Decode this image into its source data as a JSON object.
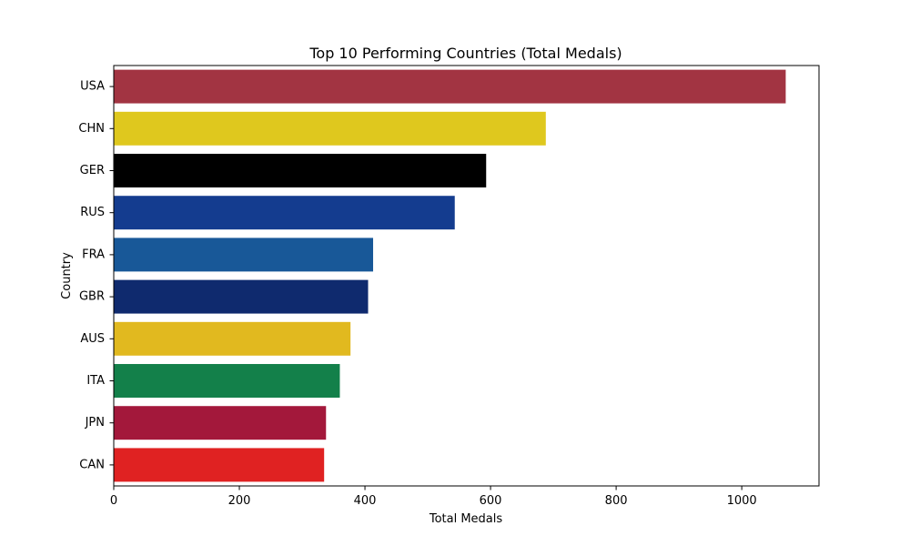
{
  "chart_data": {
    "type": "bar",
    "orientation": "horizontal",
    "title": "Top 10 Performing Countries (Total Medals)",
    "xlabel": "Total Medals",
    "ylabel": "Country",
    "categories": [
      "USA",
      "CHN",
      "GER",
      "RUS",
      "FRA",
      "GBR",
      "AUS",
      "ITA",
      "JPN",
      "CAN"
    ],
    "values": [
      1070,
      688,
      593,
      543,
      413,
      405,
      377,
      360,
      338,
      335
    ],
    "colors": [
      "#A23442",
      "#DFC81E",
      "#000000",
      "#143C8F",
      "#185898",
      "#0F2A6E",
      "#E1B91F",
      "#13804A",
      "#A3183B",
      "#E02222"
    ],
    "xlim": [
      0,
      1123
    ],
    "xticks": [
      0,
      200,
      400,
      600,
      800,
      1000
    ],
    "grid": false,
    "legend": false
  }
}
